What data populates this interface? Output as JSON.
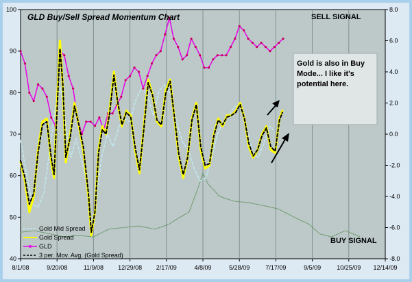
{
  "chart_data": {
    "type": "line",
    "title": "GLD Buy/Sell Spread Momentum Chart",
    "x_ticks": [
      "8/1/08",
      "9/20/08",
      "11/9/08",
      "12/29/08",
      "2/17/09",
      "4/8/09",
      "5/28/09",
      "7/17/09",
      "9/5/09",
      "10/25/09",
      "12/14/09"
    ],
    "y_left_ticks": [
      "40",
      "50",
      "60",
      "70",
      "80",
      "90",
      "100"
    ],
    "y_right_ticks": [
      "-8.0",
      "-6.0",
      "-4.0",
      "-2.0",
      "0.0",
      "2.0",
      "4.0",
      "6.0",
      "8.0"
    ],
    "ylim_left": [
      40,
      100
    ],
    "ylim_right": [
      -8,
      8
    ],
    "xlim": [
      "2008-08-01",
      "2009-12-14"
    ],
    "grid": "vertical",
    "legend_position": "bottom-left",
    "annotations": {
      "sell_signal": "SELL SIGNAL",
      "buy_signal": "BUY SIGNAL",
      "note_lines": [
        "Gold is also in Buy",
        "Mode... I like it's",
        "potential here."
      ]
    },
    "series": [
      {
        "name": "Gold Mid Spread",
        "axis": "right",
        "color": "#c2e8f0",
        "style": "dashed",
        "points": [
          [
            "2008-08-01",
            -0.4
          ],
          [
            "2008-08-09",
            -2.5
          ],
          [
            "2008-08-17",
            -4.5
          ],
          [
            "2008-08-25",
            -4.7
          ],
          [
            "2008-09-02",
            -3.8
          ],
          [
            "2008-09-10",
            -1.0
          ],
          [
            "2008-09-18",
            1.8
          ],
          [
            "2008-09-25",
            3.0
          ],
          [
            "2008-10-02",
            0.5
          ],
          [
            "2008-10-09",
            -1.5
          ],
          [
            "2008-10-16",
            -0.3
          ],
          [
            "2008-10-23",
            -1.5
          ],
          [
            "2008-10-30",
            -3.0
          ],
          [
            "2008-11-06",
            -6.0
          ],
          [
            "2008-11-12",
            -4.5
          ],
          [
            "2008-11-20",
            -1.5
          ],
          [
            "2008-11-28",
            0.0
          ],
          [
            "2008-12-06",
            -0.8
          ],
          [
            "2008-12-14",
            0.5
          ],
          [
            "2008-12-22",
            1.0
          ],
          [
            "2008-12-29",
            0.8
          ],
          [
            "2009-01-06",
            2.2
          ],
          [
            "2009-01-14",
            3.0
          ],
          [
            "2009-01-22",
            2.5
          ],
          [
            "2009-01-30",
            1.2
          ],
          [
            "2009-02-07",
            2.8
          ],
          [
            "2009-02-15",
            3.2
          ],
          [
            "2009-02-23",
            2.5
          ],
          [
            "2009-03-03",
            0.8
          ],
          [
            "2009-03-11",
            -0.5
          ],
          [
            "2009-03-19",
            -1.0
          ],
          [
            "2009-03-27",
            -2.2
          ],
          [
            "2009-04-04",
            -3.0
          ],
          [
            "2009-04-12",
            -2.8
          ],
          [
            "2009-04-20",
            -1.5
          ],
          [
            "2009-04-28",
            0.0
          ],
          [
            "2009-05-06",
            0.8
          ],
          [
            "2009-05-14",
            1.2
          ],
          [
            "2009-05-22",
            1.8
          ],
          [
            "2009-05-30",
            1.7
          ],
          [
            "2009-06-07",
            0.3
          ],
          [
            "2009-06-15",
            -1.2
          ],
          [
            "2009-06-23",
            -1.5
          ],
          [
            "2009-07-01",
            -0.5
          ],
          [
            "2009-07-09",
            0.5
          ],
          [
            "2009-07-13",
            0.3
          ]
        ]
      },
      {
        "name": "Gold Spread",
        "axis": "right",
        "color": "#ffff00",
        "style": "solid",
        "points": [
          [
            "2008-08-01",
            -1.8
          ],
          [
            "2008-08-07",
            -3.0
          ],
          [
            "2008-08-13",
            -5.0
          ],
          [
            "2008-08-19",
            -4.0
          ],
          [
            "2008-08-25",
            -1.0
          ],
          [
            "2008-08-31",
            0.8
          ],
          [
            "2008-09-06",
            1.0
          ],
          [
            "2008-09-12",
            -1.8
          ],
          [
            "2008-09-16",
            -2.8
          ],
          [
            "2008-09-20",
            2.0
          ],
          [
            "2008-09-24",
            6.0
          ],
          [
            "2008-09-28",
            3.0
          ],
          [
            "2008-10-02",
            -1.8
          ],
          [
            "2008-10-08",
            0.0
          ],
          [
            "2008-10-14",
            2.0
          ],
          [
            "2008-10-20",
            0.5
          ],
          [
            "2008-10-26",
            -1.0
          ],
          [
            "2008-11-02",
            -4.0
          ],
          [
            "2008-11-06",
            -6.5
          ],
          [
            "2008-11-11",
            -5.0
          ],
          [
            "2008-11-16",
            -1.0
          ],
          [
            "2008-11-21",
            0.5
          ],
          [
            "2008-11-26",
            0.0
          ],
          [
            "2008-12-01",
            1.5
          ],
          [
            "2008-12-07",
            4.0
          ],
          [
            "2008-12-12",
            2.0
          ],
          [
            "2008-12-18",
            0.5
          ],
          [
            "2008-12-24",
            1.5
          ],
          [
            "2008-12-30",
            1.2
          ],
          [
            "2009-01-05",
            -1.0
          ],
          [
            "2009-01-11",
            -2.5
          ],
          [
            "2009-01-17",
            0.5
          ],
          [
            "2009-01-23",
            3.5
          ],
          [
            "2009-01-29",
            2.5
          ],
          [
            "2009-02-04",
            0.8
          ],
          [
            "2009-02-10",
            0.5
          ],
          [
            "2009-02-16",
            2.8
          ],
          [
            "2009-02-22",
            3.5
          ],
          [
            "2009-02-28",
            1.0
          ],
          [
            "2009-03-06",
            -1.5
          ],
          [
            "2009-03-12",
            -2.8
          ],
          [
            "2009-03-18",
            -1.5
          ],
          [
            "2009-03-24",
            1.0
          ],
          [
            "2009-03-30",
            2.0
          ],
          [
            "2009-04-05",
            -1.0
          ],
          [
            "2009-04-11",
            -2.2
          ],
          [
            "2009-04-17",
            -2.0
          ],
          [
            "2009-04-23",
            0.0
          ],
          [
            "2009-04-29",
            1.0
          ],
          [
            "2009-05-05",
            0.5
          ],
          [
            "2009-05-11",
            1.2
          ],
          [
            "2009-05-17",
            1.2
          ],
          [
            "2009-05-23",
            1.5
          ],
          [
            "2009-05-29",
            2.0
          ],
          [
            "2009-06-04",
            1.0
          ],
          [
            "2009-06-10",
            -0.8
          ],
          [
            "2009-06-16",
            -1.5
          ],
          [
            "2009-06-22",
            -1.0
          ],
          [
            "2009-06-28",
            0.0
          ],
          [
            "2009-07-04",
            0.5
          ],
          [
            "2009-07-10",
            -1.0
          ],
          [
            "2009-07-16",
            -1.2
          ],
          [
            "2009-07-22",
            1.0
          ],
          [
            "2009-07-26",
            1.5
          ]
        ]
      },
      {
        "name": "GLD",
        "axis": "left",
        "color": "#e600e6",
        "style": "solid-markers",
        "points": [
          [
            "2008-08-01",
            90
          ],
          [
            "2008-08-07",
            87
          ],
          [
            "2008-08-13",
            80
          ],
          [
            "2008-08-19",
            78
          ],
          [
            "2008-08-25",
            82
          ],
          [
            "2008-08-31",
            81
          ],
          [
            "2008-09-06",
            79
          ],
          [
            "2008-09-12",
            74
          ],
          [
            "2008-09-18",
            72
          ],
          [
            "2008-09-24",
            90
          ],
          [
            "2008-09-30",
            89
          ],
          [
            "2008-10-06",
            84
          ],
          [
            "2008-10-12",
            81
          ],
          [
            "2008-10-18",
            74
          ],
          [
            "2008-10-24",
            70
          ],
          [
            "2008-10-30",
            73
          ],
          [
            "2008-11-05",
            73
          ],
          [
            "2008-11-11",
            72
          ],
          [
            "2008-11-17",
            74
          ],
          [
            "2008-11-23",
            71
          ],
          [
            "2008-11-29",
            75
          ],
          [
            "2008-12-05",
            75
          ],
          [
            "2008-12-11",
            77
          ],
          [
            "2008-12-17",
            79
          ],
          [
            "2008-12-23",
            83
          ],
          [
            "2008-12-29",
            84
          ],
          [
            "2009-01-04",
            86
          ],
          [
            "2009-01-10",
            85
          ],
          [
            "2009-01-16",
            81
          ],
          [
            "2009-01-22",
            84
          ],
          [
            "2009-01-28",
            87
          ],
          [
            "2009-02-03",
            89
          ],
          [
            "2009-02-09",
            90
          ],
          [
            "2009-02-15",
            94
          ],
          [
            "2009-02-21",
            98
          ],
          [
            "2009-02-27",
            93
          ],
          [
            "2009-03-05",
            91
          ],
          [
            "2009-03-11",
            88
          ],
          [
            "2009-03-17",
            89
          ],
          [
            "2009-03-23",
            93
          ],
          [
            "2009-03-29",
            91
          ],
          [
            "2009-04-04",
            89
          ],
          [
            "2009-04-10",
            86
          ],
          [
            "2009-04-16",
            86
          ],
          [
            "2009-04-22",
            88
          ],
          [
            "2009-04-28",
            89
          ],
          [
            "2009-05-04",
            89
          ],
          [
            "2009-05-10",
            89
          ],
          [
            "2009-05-16",
            91
          ],
          [
            "2009-05-22",
            93
          ],
          [
            "2009-05-28",
            96
          ],
          [
            "2009-06-03",
            95
          ],
          [
            "2009-06-09",
            93
          ],
          [
            "2009-06-15",
            92
          ],
          [
            "2009-06-21",
            91
          ],
          [
            "2009-06-27",
            92
          ],
          [
            "2009-07-03",
            91
          ],
          [
            "2009-07-09",
            90
          ],
          [
            "2009-07-15",
            91
          ],
          [
            "2009-07-21",
            92
          ],
          [
            "2009-07-27",
            93
          ]
        ]
      },
      {
        "name": "3 per. Mov. Avg. (Gold  Spread)",
        "axis": "right",
        "color": "#000000",
        "style": "dashed",
        "points": [
          [
            "2008-08-01",
            -1.7
          ],
          [
            "2008-08-07",
            -2.8
          ],
          [
            "2008-08-13",
            -4.5
          ],
          [
            "2008-08-19",
            -3.8
          ],
          [
            "2008-08-25",
            -1.2
          ],
          [
            "2008-08-31",
            0.6
          ],
          [
            "2008-09-06",
            0.8
          ],
          [
            "2008-09-12",
            -1.5
          ],
          [
            "2008-09-16",
            -2.6
          ],
          [
            "2008-09-20",
            1.5
          ],
          [
            "2008-09-24",
            5.5
          ],
          [
            "2008-09-28",
            3.2
          ],
          [
            "2008-10-02",
            -1.5
          ],
          [
            "2008-10-08",
            -0.2
          ],
          [
            "2008-10-14",
            1.8
          ],
          [
            "2008-10-20",
            0.6
          ],
          [
            "2008-10-26",
            -0.8
          ],
          [
            "2008-11-02",
            -3.8
          ],
          [
            "2008-11-06",
            -6.3
          ],
          [
            "2008-11-11",
            -5.0
          ],
          [
            "2008-11-16",
            -1.2
          ],
          [
            "2008-11-21",
            0.3
          ],
          [
            "2008-11-26",
            0.0
          ],
          [
            "2008-12-01",
            1.3
          ],
          [
            "2008-12-07",
            3.8
          ],
          [
            "2008-12-12",
            2.1
          ],
          [
            "2008-12-18",
            0.6
          ],
          [
            "2008-12-24",
            1.4
          ],
          [
            "2008-12-30",
            1.1
          ],
          [
            "2009-01-05",
            -0.8
          ],
          [
            "2009-01-11",
            -2.3
          ],
          [
            "2009-01-17",
            0.3
          ],
          [
            "2009-01-23",
            3.3
          ],
          [
            "2009-01-29",
            2.5
          ],
          [
            "2009-02-04",
            0.9
          ],
          [
            "2009-02-10",
            0.6
          ],
          [
            "2009-02-16",
            2.6
          ],
          [
            "2009-02-22",
            3.4
          ],
          [
            "2009-02-28",
            1.1
          ],
          [
            "2009-03-06",
            -1.3
          ],
          [
            "2009-03-12",
            -2.6
          ],
          [
            "2009-03-18",
            -1.5
          ],
          [
            "2009-03-24",
            0.9
          ],
          [
            "2009-03-30",
            1.9
          ],
          [
            "2009-04-05",
            -0.8
          ],
          [
            "2009-04-11",
            -2.0
          ],
          [
            "2009-04-17",
            -1.9
          ],
          [
            "2009-04-23",
            -0.1
          ],
          [
            "2009-04-29",
            0.9
          ],
          [
            "2009-05-05",
            0.6
          ],
          [
            "2009-05-11",
            1.1
          ],
          [
            "2009-05-17",
            1.2
          ],
          [
            "2009-05-23",
            1.4
          ],
          [
            "2009-05-29",
            1.9
          ],
          [
            "2009-06-04",
            1.0
          ],
          [
            "2009-06-10",
            -0.6
          ],
          [
            "2009-06-16",
            -1.4
          ],
          [
            "2009-06-22",
            -1.0
          ],
          [
            "2009-06-28",
            -0.1
          ],
          [
            "2009-07-04",
            0.4
          ],
          [
            "2009-07-10",
            -0.8
          ],
          [
            "2009-07-16",
            -1.1
          ],
          [
            "2009-07-22",
            0.9
          ],
          [
            "2009-07-26",
            1.4
          ]
        ]
      },
      {
        "name": "",
        "axis": "right",
        "color": "#6e9a6e",
        "style": "dotted",
        "points": [
          [
            "2008-08-01",
            -6.3
          ],
          [
            "2008-08-20",
            -6.2
          ],
          [
            "2008-09-10",
            -6.4
          ],
          [
            "2008-09-30",
            -6.6
          ],
          [
            "2008-10-20",
            -6.5
          ],
          [
            "2008-11-09",
            -6.6
          ],
          [
            "2008-11-30",
            -6.1
          ],
          [
            "2008-12-20",
            -6.0
          ],
          [
            "2009-01-10",
            -5.9
          ],
          [
            "2009-02-01",
            -6.1
          ],
          [
            "2009-02-20",
            -5.8
          ],
          [
            "2009-03-05",
            -5.4
          ],
          [
            "2009-03-20",
            -5.0
          ],
          [
            "2009-04-01",
            -3.5
          ],
          [
            "2009-04-08",
            -2.5
          ],
          [
            "2009-04-15",
            -3.2
          ],
          [
            "2009-05-01",
            -4.0
          ],
          [
            "2009-05-20",
            -4.3
          ],
          [
            "2009-06-10",
            -4.4
          ],
          [
            "2009-07-01",
            -4.6
          ],
          [
            "2009-07-20",
            -4.8
          ],
          [
            "2009-08-10",
            -5.3
          ],
          [
            "2009-09-01",
            -5.8
          ],
          [
            "2009-09-15",
            -6.4
          ],
          [
            "2009-10-01",
            -6.6
          ],
          [
            "2009-10-20",
            -6.2
          ],
          [
            "2009-11-10",
            -6.6
          ]
        ]
      }
    ]
  }
}
